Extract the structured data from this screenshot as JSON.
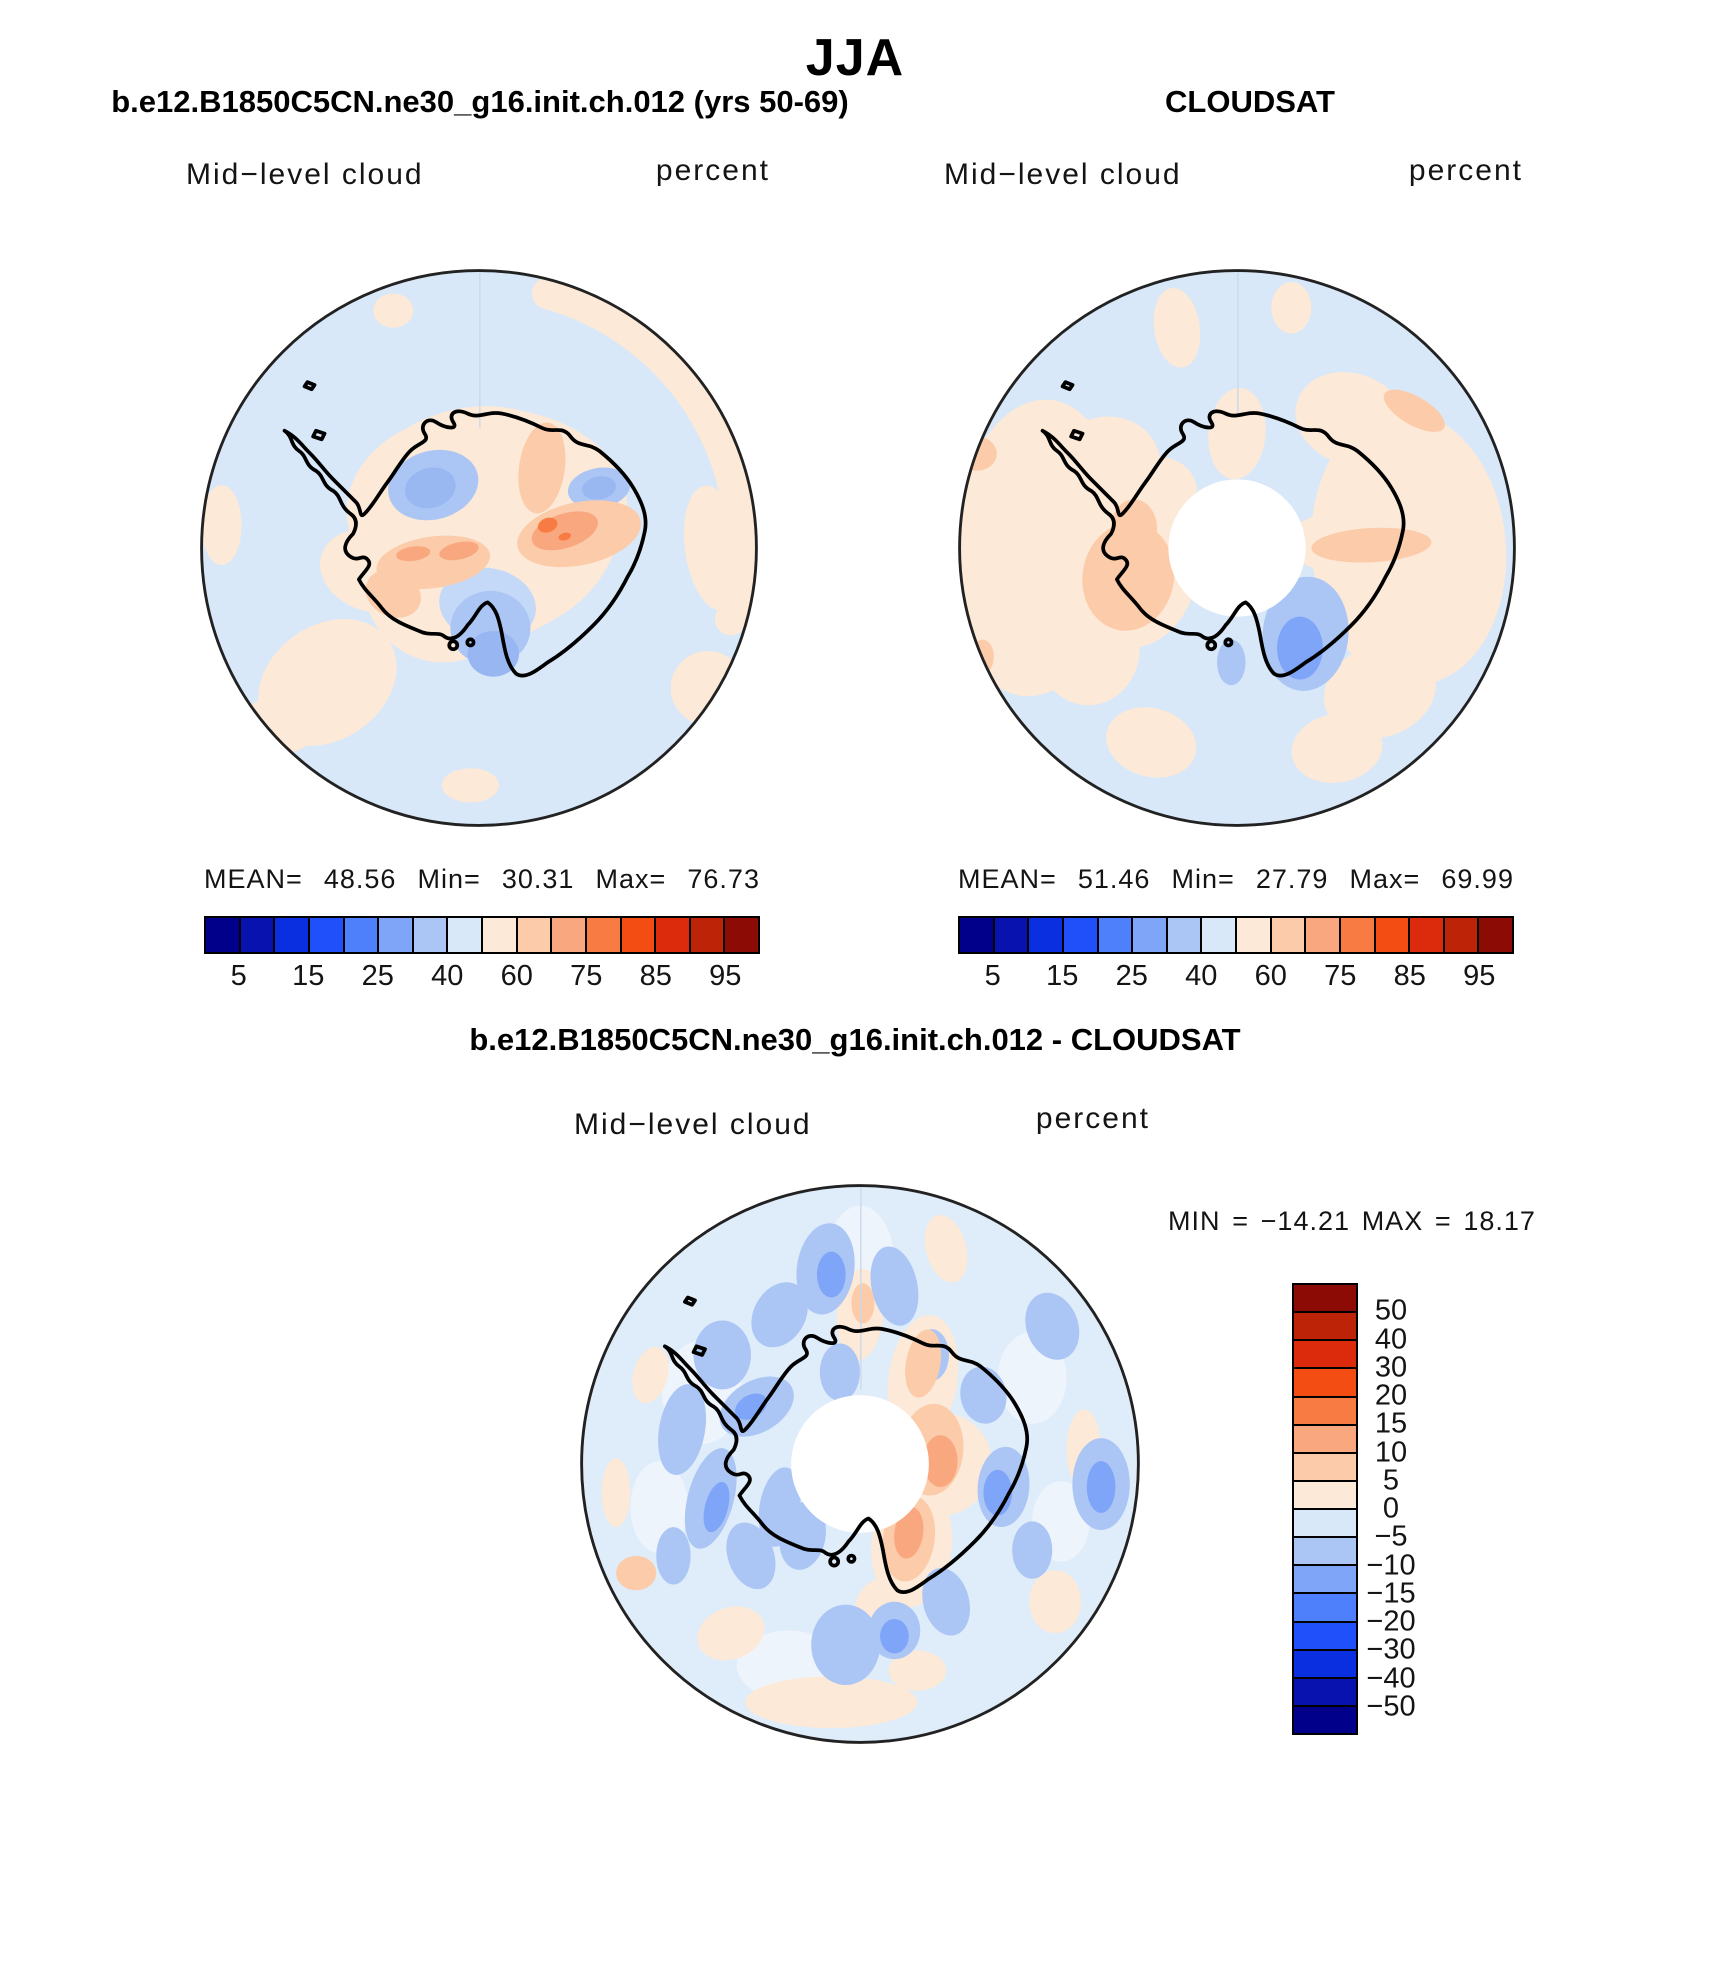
{
  "page_title": "JJA",
  "palette": {
    "diverging_16": [
      "#00008B",
      "#0813AF",
      "#0A2FE0",
      "#2050FA",
      "#4D80FA",
      "#7FA5F9",
      "#ABC6F5",
      "#D8E8F9",
      "#FCE9D7",
      "#FBCBAA",
      "#F9A77F",
      "#F87B43",
      "#F44D14",
      "#DB2B0C",
      "#BD2306",
      "#8C0B04"
    ]
  },
  "panels": [
    {
      "title": "b.e12.B1850C5CN.ne30_g16.init.ch.012 (yrs 50-69)",
      "field_label": "Mid−level cloud",
      "units_label": "percent",
      "stats": {
        "mean_label": "MEAN=",
        "mean": "48.56",
        "min_label": "Min=",
        "min": "30.31",
        "max_label": "Max=",
        "max": "76.73"
      },
      "colorbar_ticks": [
        "5",
        "15",
        "25",
        "40",
        "60",
        "75",
        "85",
        "95"
      ]
    },
    {
      "title": "CLOUDSAT",
      "field_label": "Mid−level cloud",
      "units_label": "percent",
      "stats": {
        "mean_label": "MEAN=",
        "mean": "51.46",
        "min_label": "Min=",
        "min": "27.79",
        "max_label": "Max=",
        "max": "69.99"
      },
      "colorbar_ticks": [
        "5",
        "15",
        "25",
        "40",
        "60",
        "75",
        "85",
        "95"
      ]
    }
  ],
  "difference": {
    "title": "b.e12.B1850C5CN.ne30_g16.init.ch.012 - CLOUDSAT",
    "field_label": "Mid−level cloud",
    "units_label": "percent",
    "stats": {
      "min_label": "MIN",
      "equals": "=",
      "min": "−14.21",
      "max_label": "MAX",
      "max": "18.17"
    },
    "colorbar_ticks": [
      "50",
      "40",
      "30",
      "20",
      "15",
      "10",
      "5",
      "0",
      "−5",
      "−10",
      "−15",
      "−20",
      "−30",
      "−40",
      "−50"
    ]
  },
  "chart_data": [
    {
      "type": "contour_map",
      "panel": "model",
      "season_title": "JJA",
      "title": "b.e12.B1850C5CN.ne30_g16.init.ch.012 (yrs 50-69)",
      "variable": "Mid-level cloud",
      "units": "percent",
      "projection": "south polar stereographic (Antarctica)",
      "stats": {
        "mean": 48.56,
        "min": 30.31,
        "max": 76.73
      },
      "contour_levels": [
        5,
        10,
        15,
        20,
        25,
        30,
        40,
        50,
        60,
        70,
        75,
        80,
        85,
        90,
        95
      ],
      "labeled_levels": [
        5,
        15,
        25,
        40,
        60,
        75,
        85,
        95
      ],
      "legend_position": "below",
      "notes": "mostly 40-50% over ocean (light blue), 50-60% over coastal Antarctica (pale peach), 60-75% cores over East/West Antarctic interior (salmon/orange), 30-40% pockets (medium blue) near Weddell and Ross sectors"
    },
    {
      "type": "contour_map",
      "panel": "observations",
      "season_title": "JJA",
      "title": "CLOUDSAT",
      "variable": "Mid-level cloud",
      "units": "percent",
      "projection": "south polar stereographic (Antarctica)",
      "stats": {
        "mean": 51.46,
        "min": 27.79,
        "max": 69.99
      },
      "contour_levels": [
        5,
        10,
        15,
        20,
        25,
        30,
        40,
        50,
        60,
        70,
        75,
        80,
        85,
        90,
        95
      ],
      "labeled_levels": [
        5,
        15,
        25,
        40,
        60,
        75,
        85,
        95
      ],
      "legend_position": "below",
      "notes": "white circle at pole = satellite data gap poleward of ~82S; widespread 50-60% (peach) with 60-70% (salmon) over West Antarctica and east of pole; 30-40% (blue) near Ross Ice Shelf"
    },
    {
      "type": "contour_map_difference",
      "panel": "difference",
      "title": "b.e12.B1850C5CN.ne30_g16.init.ch.012 - CLOUDSAT",
      "variable": "Mid-level cloud",
      "units": "percent",
      "projection": "south polar stereographic (Antarctica)",
      "stats": {
        "min": -14.21,
        "max": 18.17
      },
      "contour_levels": [
        -50,
        -40,
        -30,
        -20,
        -15,
        -10,
        -5,
        0,
        5,
        10,
        15,
        20,
        30,
        40,
        50
      ],
      "legend_position": "right vertical",
      "notes": "mottled negative bias -5 to -15 (blues) over most of Southern Ocean; positive bias +5 to +15 (salmon/orange) east and south-east of the pole"
    }
  ]
}
